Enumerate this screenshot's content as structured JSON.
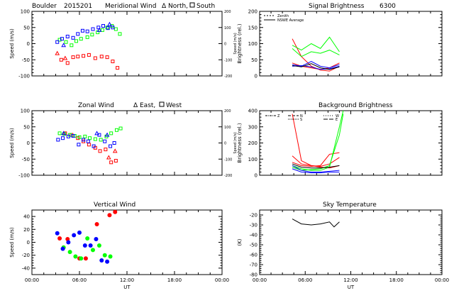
{
  "figure": {
    "header_site": "Boulder",
    "header_date": "2015201",
    "header_wavelength": "6300"
  },
  "chart_data": [
    {
      "id": "meridional",
      "type": "scatter",
      "title": "Meridional Wind",
      "title_suffix_north": "North,",
      "title_suffix_south": "South",
      "xlabel": "",
      "ylabel": "Speed (m/s)",
      "ylabel_right": "Speed (m/s)",
      "xlim": [
        0,
        24
      ],
      "ylim": [
        -100,
        100
      ],
      "yticks": [
        "-100",
        "-50",
        "0",
        "50",
        "100"
      ],
      "yticks_right": [
        "-200",
        "-100",
        "0",
        "100",
        "200"
      ],
      "series": [
        {
          "name": "",
          "color": "#ff0000",
          "marker": "triangle",
          "x": [
            3.2,
            4.2
          ],
          "y": [
            -30,
            -45
          ]
        },
        {
          "name": "",
          "color": "#ff0000",
          "marker": "square",
          "x": [
            3.7,
            4.5,
            5.2,
            5.8,
            6.5,
            7.2,
            8.0,
            8.8,
            9.5,
            10.2,
            10.8
          ],
          "y": [
            -50,
            -60,
            -42,
            -40,
            -38,
            -35,
            -45,
            -40,
            -42,
            -55,
            -75
          ]
        },
        {
          "name": "",
          "color": "#00ff00",
          "marker": "square",
          "x": [
            3.5,
            4.3,
            5.0,
            5.6,
            6.2,
            7.0,
            7.6,
            8.3,
            8.9,
            9.5,
            10.1,
            10.6,
            11.1
          ],
          "y": [
            12,
            5,
            -5,
            8,
            15,
            20,
            28,
            35,
            42,
            50,
            55,
            45,
            30
          ]
        },
        {
          "name": "",
          "color": "#0000ff",
          "marker": "square",
          "x": [
            3.2,
            3.8,
            4.5,
            5.2,
            5.8,
            6.4,
            7.0,
            7.7,
            8.4,
            9.0,
            9.6,
            10.2
          ],
          "y": [
            5,
            15,
            22,
            18,
            30,
            40,
            38,
            45,
            50,
            55,
            48,
            50
          ]
        },
        {
          "name": "",
          "color": "#0000ff",
          "marker": "triangle",
          "x": [
            4.0,
            8.5,
            9.8
          ],
          "y": [
            -5,
            42,
            60
          ]
        }
      ]
    },
    {
      "id": "zonal",
      "type": "scatter",
      "title": "Zonal Wind",
      "title_suffix_east": "East,",
      "title_suffix_west": "West",
      "xlabel": "",
      "ylabel": "Speed (m/s)",
      "ylabel_right": "Speed (m/s)",
      "xlim": [
        0,
        24
      ],
      "ylim": [
        -100,
        100
      ],
      "yticks": [
        "-100",
        "-50",
        "0",
        "50",
        "100"
      ],
      "yticks_right": [
        "-200",
        "-100",
        "0",
        "100",
        "200"
      ],
      "series": [
        {
          "name": "",
          "color": "#ff0000",
          "marker": "square",
          "x": [
            4.2,
            5.0,
            5.8,
            6.5,
            7.2,
            8.0,
            8.6,
            9.3,
            10.0,
            10.6
          ],
          "y": [
            30,
            25,
            15,
            5,
            -5,
            -15,
            -25,
            -20,
            -60,
            -55
          ]
        },
        {
          "name": "",
          "color": "#ff0000",
          "marker": "triangle",
          "x": [
            9.7,
            10.5
          ],
          "y": [
            -45,
            -25
          ]
        },
        {
          "name": "",
          "color": "#00ff00",
          "marker": "square",
          "x": [
            3.5,
            4.1,
            4.8,
            5.4,
            6.0,
            6.7,
            7.3,
            8.0,
            8.7,
            9.4,
            10.0,
            10.7,
            11.2
          ],
          "y": [
            30,
            28,
            25,
            22,
            18,
            20,
            15,
            12,
            10,
            20,
            30,
            40,
            45
          ]
        },
        {
          "name": "",
          "color": "#0000ff",
          "marker": "square",
          "x": [
            3.3,
            3.9,
            4.6,
            5.2,
            5.9,
            6.5,
            7.1,
            7.8,
            8.5,
            9.2,
            9.9,
            10.4
          ],
          "y": [
            10,
            15,
            20,
            22,
            -5,
            10,
            5,
            -10,
            25,
            5,
            -10,
            0
          ]
        },
        {
          "name": "",
          "color": "#0000ff",
          "marker": "triangle",
          "x": [
            4.0,
            8.2,
            9.5
          ],
          "y": [
            30,
            30,
            25
          ]
        }
      ]
    },
    {
      "id": "vertical",
      "type": "scatter",
      "title": "Vertical Wind",
      "xlabel": "UT",
      "ylabel": "Speed (m/s)",
      "xlim": [
        0,
        24
      ],
      "ylim": [
        -50,
        50
      ],
      "yticks": [
        "-40",
        "-20",
        "0",
        "20",
        "40"
      ],
      "xticks": [
        "00:00",
        "06:00",
        "12:00",
        "18:00",
        "00:00"
      ],
      "series": [
        {
          "name": "",
          "color": "#ff0000",
          "marker": "circle",
          "x": [
            3.5,
            4.5,
            6.0,
            6.8,
            8.2,
            9.8,
            10.5
          ],
          "y": [
            6,
            5,
            -25,
            -25,
            28,
            42,
            47
          ]
        },
        {
          "name": "",
          "color": "#00ff00",
          "marker": "circle",
          "x": [
            4.0,
            4.8,
            5.5,
            6.2,
            7.0,
            7.7,
            8.5,
            9.2,
            9.9
          ],
          "y": [
            -8,
            -15,
            -22,
            -25,
            6,
            -12,
            -5,
            -20,
            -22
          ]
        },
        {
          "name": "",
          "color": "#0000ff",
          "marker": "circle",
          "x": [
            3.2,
            3.9,
            4.6,
            5.3,
            6.0,
            6.7,
            7.4,
            8.1,
            8.8,
            9.5
          ],
          "y": [
            14,
            -10,
            0,
            11,
            15,
            -5,
            -5,
            5,
            -28,
            -30
          ]
        }
      ]
    },
    {
      "id": "signal",
      "type": "line",
      "title": "Signal Brightness",
      "title_suffix": "6300",
      "xlabel": "",
      "ylabel": "Brightness (rel.)",
      "xlim": [
        0,
        24
      ],
      "ylim": [
        0,
        200
      ],
      "yticks": [
        "0",
        "50",
        "100",
        "150",
        "200"
      ],
      "legend": [
        "Zenith",
        "NSWE Average"
      ],
      "series": [
        {
          "name": "",
          "color": "#ff0000",
          "x": [
            4.3,
            5.5,
            6.8,
            8.0,
            9.2,
            10.5
          ],
          "y": [
            115,
            60,
            30,
            18,
            15,
            30
          ]
        },
        {
          "name": "",
          "color": "#ff0000",
          "x": [
            4.3,
            5.5,
            6.8,
            8.0,
            9.2,
            10.5
          ],
          "y": [
            40,
            30,
            25,
            20,
            25,
            40
          ]
        },
        {
          "name": "",
          "color": "#00ff00",
          "x": [
            4.3,
            5.5,
            6.8,
            8.0,
            9.2,
            10.5
          ],
          "y": [
            95,
            80,
            100,
            85,
            120,
            75
          ]
        },
        {
          "name": "",
          "color": "#00ff00",
          "x": [
            4.3,
            5.5,
            6.8,
            8.0,
            9.2,
            10.5
          ],
          "y": [
            85,
            60,
            75,
            70,
            80,
            65
          ]
        },
        {
          "name": "",
          "color": "#0000ff",
          "x": [
            4.3,
            5.5,
            6.8,
            8.0,
            9.2,
            10.5
          ],
          "y": [
            35,
            30,
            45,
            30,
            25,
            35
          ]
        },
        {
          "name": "",
          "color": "#0000ff",
          "x": [
            4.3,
            5.5,
            6.8,
            8.0,
            9.2,
            10.5
          ],
          "y": [
            30,
            32,
            28,
            20,
            22,
            30
          ]
        },
        {
          "name": "",
          "color": "#000000",
          "x": [
            4.3,
            5.5,
            6.8,
            8.0,
            9.2,
            10.5
          ],
          "y": [
            32,
            28,
            38,
            25,
            20,
            28
          ]
        }
      ]
    },
    {
      "id": "background",
      "type": "line",
      "title": "Background Brightness",
      "xlabel": "",
      "ylabel": "Brightness (rel.)",
      "xlim": [
        0,
        24
      ],
      "ylim": [
        0,
        400
      ],
      "yticks": [
        "0",
        "100",
        "200",
        "300",
        "400"
      ],
      "legend": [
        "Z",
        "N",
        "S",
        "W",
        "E"
      ],
      "series": [
        {
          "name": "",
          "color": "#ff0000",
          "x": [
            4.3,
            5.5,
            6.8,
            8.0,
            9.2,
            10.5
          ],
          "y": [
            380,
            90,
            60,
            50,
            45,
            60
          ]
        },
        {
          "name": "",
          "color": "#ff0000",
          "x": [
            4.3,
            5.5,
            6.8,
            8.0,
            9.2,
            10.5
          ],
          "y": [
            120,
            70,
            60,
            55,
            70,
            110
          ]
        },
        {
          "name": "",
          "color": "#ff0000",
          "x": [
            4.3,
            5.5,
            6.8,
            8.0,
            9.2,
            10.5
          ],
          "y": [
            80,
            60,
            55,
            60,
            130,
            140
          ]
        },
        {
          "name": "",
          "color": "#00ff00",
          "x": [
            4.3,
            5.5,
            6.8,
            8.0,
            9.2,
            10.5,
            11.0
          ],
          "y": [
            60,
            40,
            30,
            30,
            50,
            300,
            400
          ]
        },
        {
          "name": "",
          "color": "#00ff00",
          "x": [
            4.3,
            5.5,
            6.8,
            8.0,
            9.2,
            10.5,
            11.0
          ],
          "y": [
            50,
            30,
            35,
            40,
            60,
            250,
            380
          ]
        },
        {
          "name": "",
          "color": "#0000ff",
          "x": [
            4.3,
            5.5,
            6.8,
            8.0,
            9.2,
            10.5
          ],
          "y": [
            40,
            20,
            15,
            15,
            20,
            20
          ]
        },
        {
          "name": "",
          "color": "#0000ff",
          "x": [
            4.3,
            5.5,
            6.8,
            8.0,
            9.2,
            10.5
          ],
          "y": [
            60,
            30,
            20,
            20,
            25,
            30
          ]
        },
        {
          "name": "",
          "color": "#000000",
          "x": [
            4.3,
            5.5,
            6.8,
            8.0,
            9.2,
            10.5
          ],
          "y": [
            70,
            50,
            45,
            45,
            50,
            60
          ]
        }
      ]
    },
    {
      "id": "sky",
      "type": "line",
      "title": "Sky Temperature",
      "xlabel": "UT",
      "ylabel": "(K)",
      "xlim": [
        0,
        24
      ],
      "ylim": [
        -80,
        -15
      ],
      "yticks": [
        "-80",
        "-70",
        "-60",
        "-50",
        "-40",
        "-30",
        "-20"
      ],
      "xticks": [
        "00:00",
        "06:00",
        "12:00",
        "18:00",
        "00:00"
      ],
      "series": [
        {
          "name": "",
          "color": "#000000",
          "x": [
            4.3,
            5.5,
            6.8,
            8.0,
            9.2,
            9.8,
            10.5
          ],
          "y": [
            -24,
            -29,
            -30,
            -29,
            -27,
            -32,
            -27
          ]
        }
      ]
    }
  ]
}
